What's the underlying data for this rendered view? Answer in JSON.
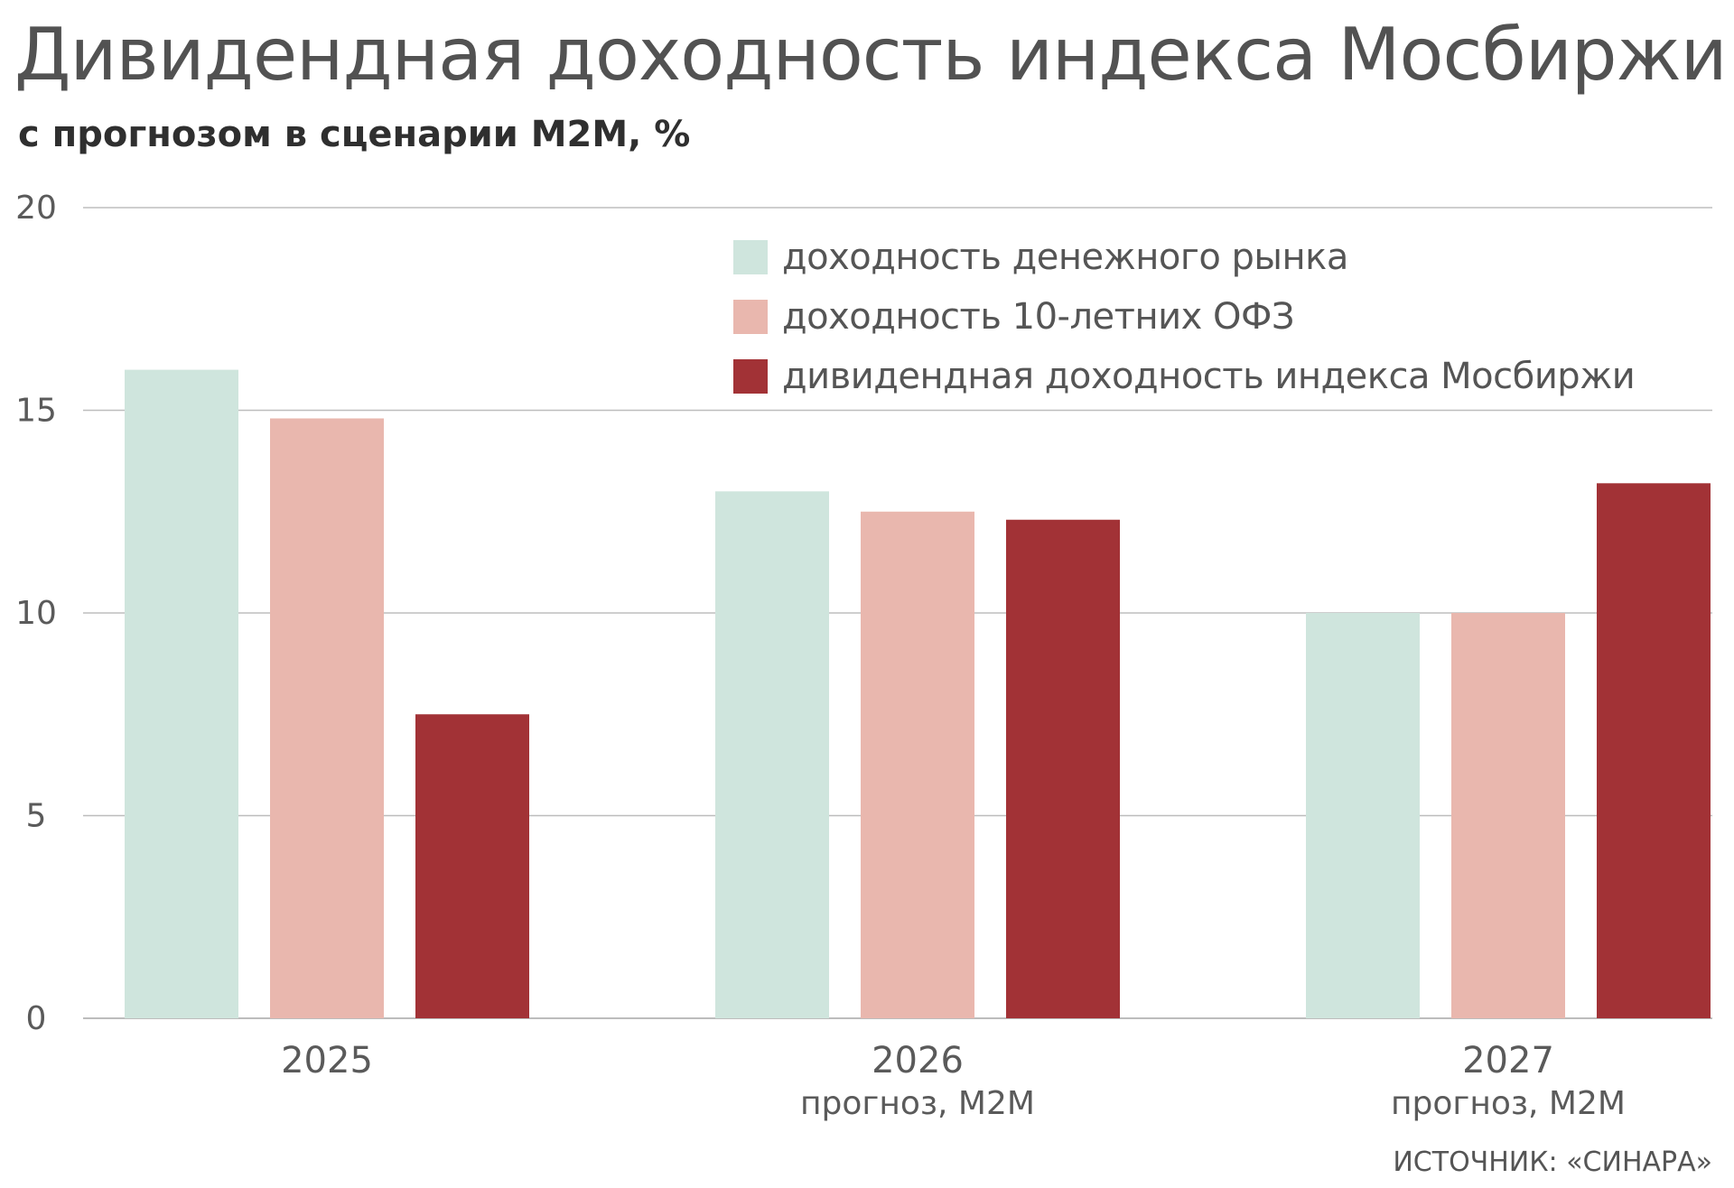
{
  "colors": {
    "money_market": "#cfe5dd",
    "ofz": "#e9b7ae",
    "moex": "#a23236",
    "grid": "#bdbdbd",
    "axis_text": "#5a5a5a"
  },
  "chart_data": {
    "type": "bar",
    "title": "Дивидендная доходность индекса Мосбиржи",
    "subtitle": "с прогнозом в сценарии М2М, %",
    "categories": [
      "2025",
      "2026",
      "2027"
    ],
    "category_sublabels": [
      "",
      "прогноз, М2М",
      "прогноз, М2М"
    ],
    "series": [
      {
        "name": "доходность денежного рынка",
        "values": [
          16.0,
          13.0,
          10.0
        ]
      },
      {
        "name": "доходность 10-летних ОФЗ",
        "values": [
          14.8,
          12.5,
          10.0
        ]
      },
      {
        "name": "дивидендная доходность индекса Мосбиржи",
        "values": [
          7.5,
          12.3,
          13.2
        ]
      }
    ],
    "ylim": [
      0,
      20
    ],
    "yticks": [
      0,
      5,
      10,
      15,
      20
    ],
    "grid": true,
    "legend_position": "top-right",
    "xlabel": "",
    "ylabel": ""
  },
  "source": "ИСТОЧНИК: «СИНАРА»"
}
